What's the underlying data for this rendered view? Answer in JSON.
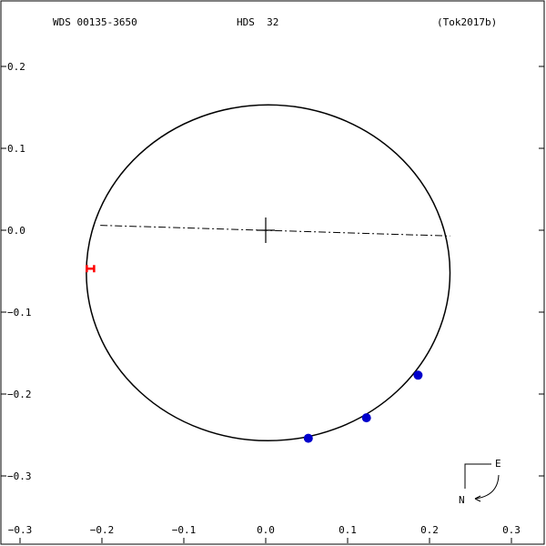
{
  "header": {
    "left": "WDS 00135-3650",
    "center": "HDS  32",
    "right": "(Tok2017b)"
  },
  "compass": {
    "east": "E",
    "north": "N"
  },
  "chart_data": {
    "type": "scatter",
    "xlim": [
      -0.3,
      0.3
    ],
    "ylim": [
      -0.35,
      0.22
    ],
    "x_ticks": [
      -0.3,
      -0.2,
      -0.1,
      0.0,
      0.1,
      0.2,
      0.3
    ],
    "y_ticks": [
      0.2,
      0.1,
      0.0,
      -0.1,
      -0.2,
      -0.3
    ],
    "x_tick_labels": [
      "−0.3",
      "−0.2",
      "−0.1",
      "0.0",
      "0.1",
      "0.2",
      "0.3"
    ],
    "y_tick_labels": [
      "0.2",
      "0.1",
      "0.0",
      "−0.1",
      "−0.2",
      "−0.3"
    ],
    "grid": false,
    "orbit": {
      "center": [
        0.003,
        -0.052
      ],
      "rx": 0.222,
      "ry": 0.205
    },
    "line_of_nodes": [
      [
        -0.202,
        0.006
      ],
      [
        0.225,
        -0.007
      ]
    ],
    "primary": [
      0.0,
      0.0
    ],
    "observations": [
      {
        "x": 0.052,
        "y": -0.254
      },
      {
        "x": 0.123,
        "y": -0.229
      },
      {
        "x": 0.186,
        "y": -0.177
      }
    ],
    "other_points": [
      {
        "x": -0.214,
        "y": -0.047
      }
    ],
    "colors": {
      "observation": "#0000cc",
      "other": "#ff0000",
      "orbit": "#000000"
    }
  }
}
